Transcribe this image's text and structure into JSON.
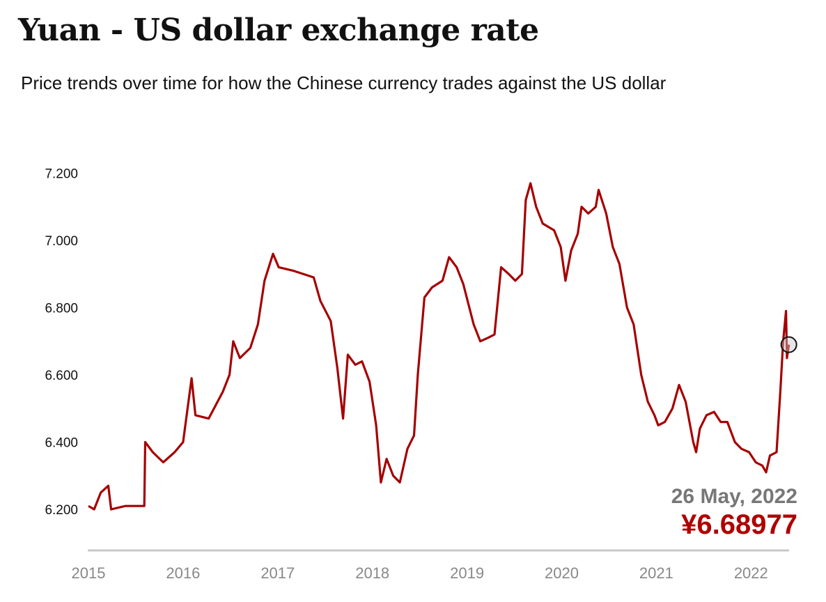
{
  "header": {
    "title": "Yuan - US dollar exchange rate",
    "subtitle": "Price trends over time for how the Chinese currency trades against the US dollar"
  },
  "chart_data": {
    "type": "line",
    "title": "Yuan - US dollar exchange rate",
    "subtitle": "Price trends over time for how the Chinese currency trades against the US dollar",
    "xlabel": "",
    "ylabel": "",
    "xlim": [
      2015.0,
      2022.4
    ],
    "ylim": [
      6.2,
      7.2
    ],
    "grid": false,
    "line_color": "#a50000",
    "x_ticks": [
      "2015",
      "2016",
      "2017",
      "2018",
      "2019",
      "2020",
      "2021",
      "2022"
    ],
    "y_ticks": [
      "7.200",
      "7.000",
      "6.800",
      "6.600",
      "6.400",
      "6.200"
    ],
    "series": [
      {
        "x": [
          2015.0,
          2015.06,
          2015.13,
          2015.17,
          2015.21,
          2015.24,
          2015.39,
          2015.59,
          2015.6,
          2015.68,
          2015.79,
          2015.91,
          2016.0,
          2016.09,
          2016.13,
          2016.27,
          2016.42,
          2016.49,
          2016.53,
          2016.6,
          2016.71,
          2016.79,
          2016.86,
          2016.95,
          2017.01,
          2017.16,
          2017.38,
          2017.45,
          2017.56,
          2017.63,
          2017.69,
          2017.74,
          2017.82,
          2017.89,
          2017.97,
          2018.04,
          2018.09,
          2018.15,
          2018.22,
          2018.29,
          2018.37,
          2018.44,
          2018.48,
          2018.55,
          2018.63,
          2018.74,
          2018.81,
          2018.89,
          2018.96,
          2019.07,
          2019.14,
          2019.22,
          2019.29,
          2019.36,
          2019.44,
          2019.51,
          2019.58,
          2019.62,
          2019.67,
          2019.73,
          2019.8,
          2019.92,
          2019.99,
          2020.04,
          2020.1,
          2020.17,
          2020.21,
          2020.28,
          2020.36,
          2020.39,
          2020.47,
          2020.54,
          2020.61,
          2020.69,
          2020.76,
          2020.84,
          2020.91,
          2020.98,
          2021.02,
          2021.09,
          2021.17,
          2021.24,
          2021.31,
          2021.39,
          2021.42,
          2021.46,
          2021.53,
          2021.61,
          2021.68,
          2021.75,
          2021.83,
          2021.9,
          2021.98,
          2022.05,
          2022.12,
          2022.16,
          2022.2,
          2022.27,
          2022.31,
          2022.34,
          2022.37,
          2022.38,
          2022.4
        ],
        "y": [
          6.21,
          6.2,
          6.25,
          6.26,
          6.27,
          6.2,
          6.21,
          6.21,
          6.4,
          6.37,
          6.34,
          6.37,
          6.4,
          6.59,
          6.48,
          6.47,
          6.55,
          6.6,
          6.7,
          6.65,
          6.68,
          6.75,
          6.88,
          6.96,
          6.92,
          6.91,
          6.89,
          6.82,
          6.76,
          6.62,
          6.47,
          6.66,
          6.63,
          6.64,
          6.58,
          6.45,
          6.28,
          6.35,
          6.3,
          6.28,
          6.38,
          6.42,
          6.6,
          6.83,
          6.86,
          6.88,
          6.95,
          6.92,
          6.87,
          6.75,
          6.7,
          6.71,
          6.72,
          6.92,
          6.9,
          6.88,
          6.9,
          7.12,
          7.17,
          7.1,
          7.05,
          7.03,
          6.98,
          6.88,
          6.97,
          7.02,
          7.1,
          7.08,
          7.1,
          7.15,
          7.08,
          6.98,
          6.93,
          6.8,
          6.75,
          6.6,
          6.52,
          6.48,
          6.45,
          6.46,
          6.5,
          6.57,
          6.52,
          6.4,
          6.37,
          6.44,
          6.48,
          6.49,
          6.46,
          6.46,
          6.4,
          6.38,
          6.37,
          6.34,
          6.33,
          6.31,
          6.36,
          6.37,
          6.55,
          6.7,
          6.79,
          6.65,
          6.68977
        ]
      }
    ],
    "annotation": {
      "date": "26 May, 2022",
      "value": "¥6.68977",
      "date_color": "#777777",
      "value_color": "#b00000"
    }
  }
}
